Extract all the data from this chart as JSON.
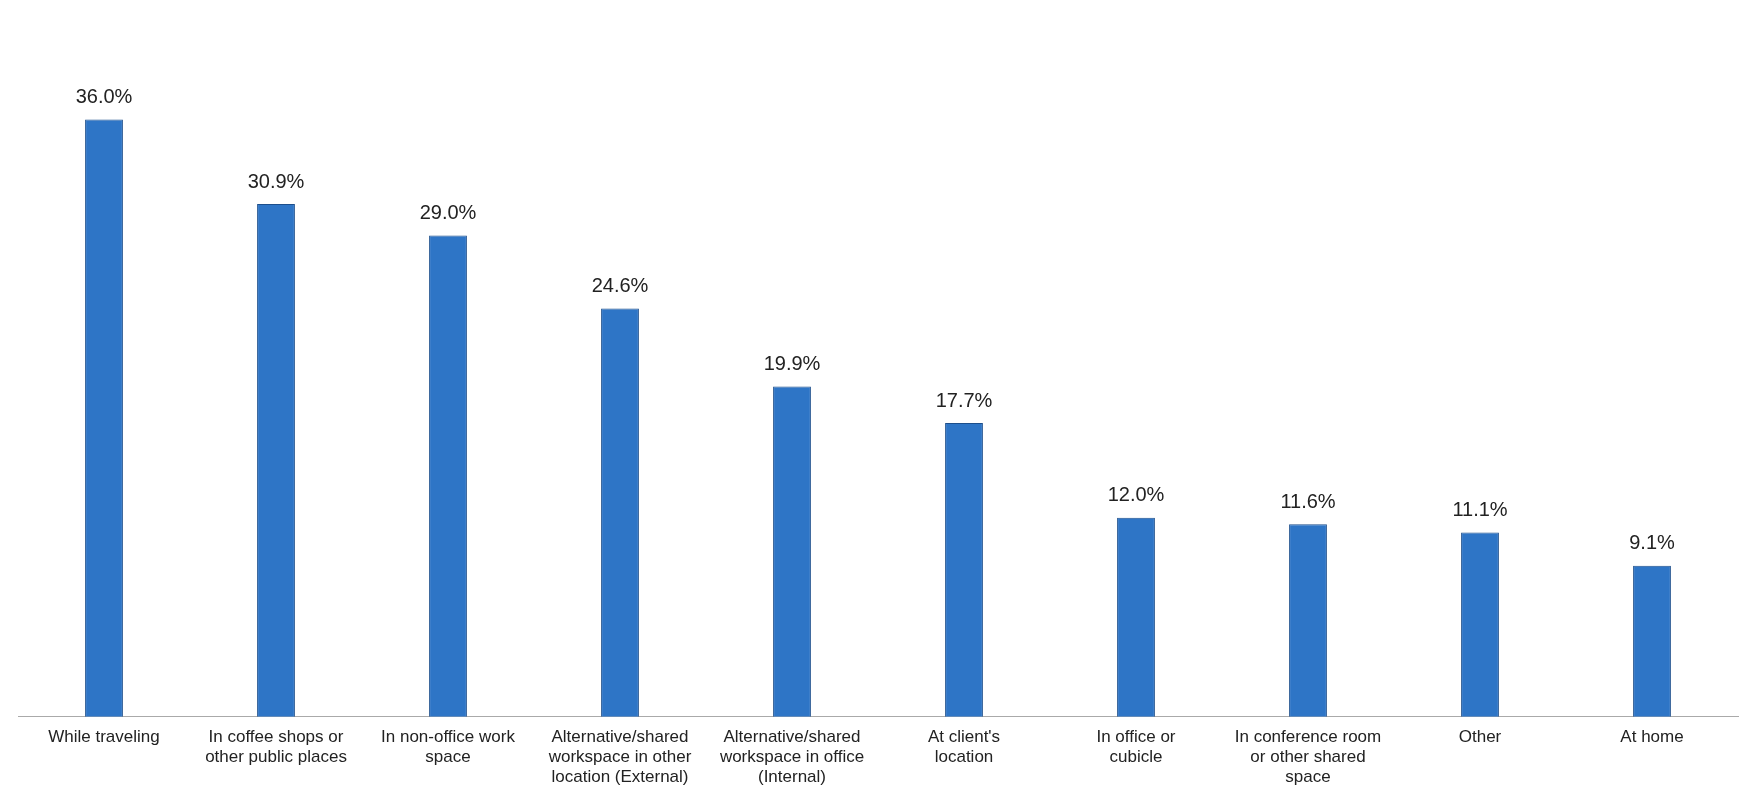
{
  "chart_data": {
    "type": "bar",
    "categories": [
      "While traveling",
      "In coffee shops or other public places",
      "In non-office work space",
      "Alternative/shared workspace in other location (External)",
      "Alternative/shared workspace in office (Internal)",
      "At client's location",
      "In office or cubicle",
      "In conference room or other shared space",
      "Other",
      "At home"
    ],
    "values": [
      36.0,
      30.9,
      29.0,
      24.6,
      19.9,
      17.7,
      12.0,
      11.6,
      11.1,
      9.1
    ],
    "value_labels": [
      "36.0%",
      "30.9%",
      "29.0%",
      "24.6%",
      "19.9%",
      "17.7%",
      "12.0%",
      "11.6%",
      "11.1%",
      "9.1%"
    ],
    "color": "#2e75c6",
    "grid": false,
    "legend": false
  }
}
